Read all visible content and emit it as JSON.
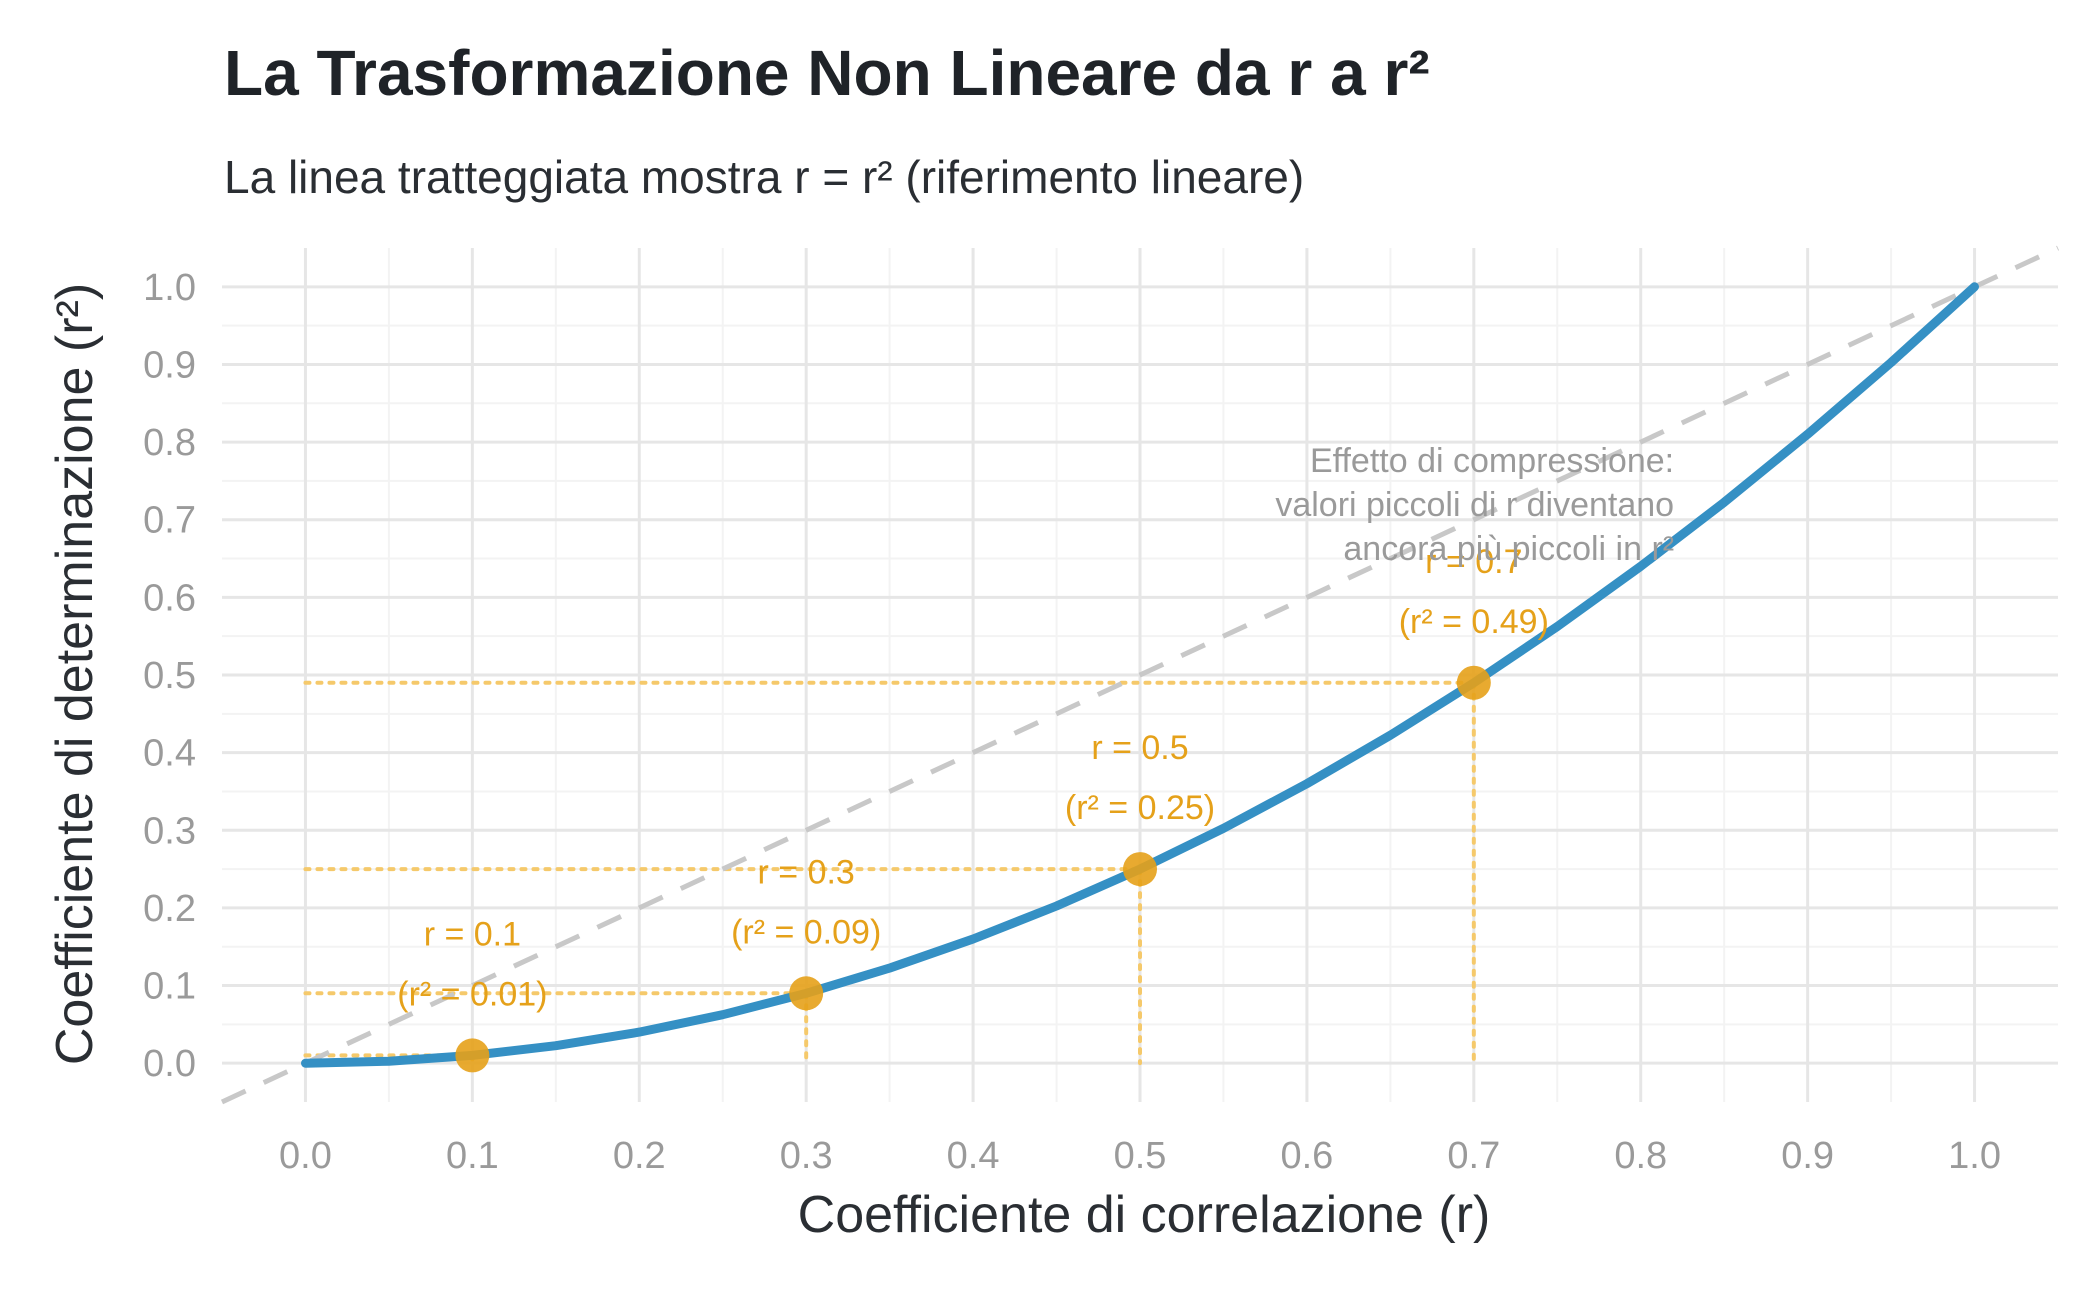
{
  "chart_data": {
    "type": "line",
    "title": "La Trasformazione Non Lineare da r a r²",
    "subtitle": "La linea tratteggiata mostra r = r² (riferimento lineare)",
    "xlabel": "Coefficiente di correlazione (r)",
    "ylabel": "Coefficiente di determinazione (r²)",
    "xlim": [
      -0.05,
      1.05
    ],
    "ylim": [
      -0.05,
      1.05
    ],
    "xticks": [
      "0.0",
      "0.1",
      "0.2",
      "0.3",
      "0.4",
      "0.5",
      "0.6",
      "0.7",
      "0.8",
      "0.9",
      "1.0"
    ],
    "yticks": [
      "0.0",
      "0.1",
      "0.2",
      "0.3",
      "0.4",
      "0.5",
      "0.6",
      "0.7",
      "0.8",
      "0.9",
      "1.0"
    ],
    "grid": true,
    "series": [
      {
        "kind": "curve",
        "color": "#3590c4",
        "x": [
          0,
          0.05,
          0.1,
          0.15,
          0.2,
          0.25,
          0.3,
          0.35,
          0.4,
          0.45,
          0.5,
          0.55,
          0.6,
          0.65,
          0.7,
          0.75,
          0.8,
          0.85,
          0.9,
          0.95,
          1.0
        ],
        "y": [
          0,
          0.0025,
          0.01,
          0.0225,
          0.04,
          0.0625,
          0.09,
          0.1225,
          0.16,
          0.2025,
          0.25,
          0.3025,
          0.36,
          0.4225,
          0.49,
          0.5625,
          0.64,
          0.7225,
          0.81,
          0.9025,
          1.0
        ]
      },
      {
        "kind": "reference",
        "color": "#c8c8c8",
        "style": "dashed",
        "x": [
          -0.05,
          1.05
        ],
        "y": [
          -0.05,
          1.05
        ]
      }
    ],
    "highlight_points": [
      {
        "r": 0.1,
        "r2": 0.01,
        "label_r": "r = 0.1",
        "label_r2": "(r² = 0.01)"
      },
      {
        "r": 0.3,
        "r2": 0.09,
        "label_r": "r = 0.3",
        "label_r2": "(r² = 0.09)"
      },
      {
        "r": 0.5,
        "r2": 0.25,
        "label_r": "r = 0.5",
        "label_r2": "(r² = 0.25)"
      },
      {
        "r": 0.7,
        "r2": 0.49,
        "label_r": "r = 0.7",
        "label_r2": "(r² = 0.49)"
      }
    ],
    "highlight_color": "#e5a11a",
    "guide_color": "#f5c96b",
    "annotation": {
      "lines": [
        "Effetto di compressione:",
        "valori piccoli di r diventano",
        "ancora più piccoli in r²"
      ],
      "x": 0.82,
      "y": 0.72,
      "color": "#9a9a9a"
    }
  }
}
